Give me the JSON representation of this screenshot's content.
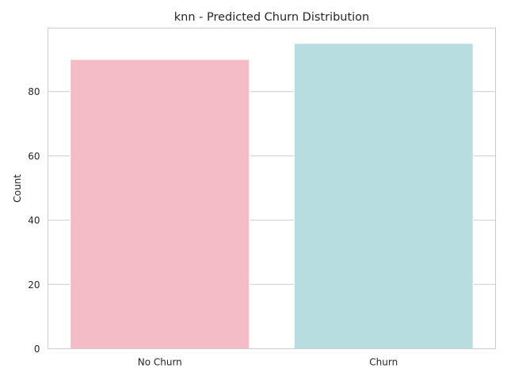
{
  "chart_data": {
    "type": "bar",
    "title": "knn - Predicted Churn Distribution",
    "xlabel": "",
    "ylabel": "Count",
    "categories": [
      "No Churn",
      "Churn"
    ],
    "values": [
      90,
      95
    ],
    "colors": [
      "#f4bcc7",
      "#b8dde1"
    ],
    "ylim": [
      0,
      99.75
    ],
    "yticks": [
      0,
      20,
      40,
      60,
      80
    ],
    "grid": true,
    "legend": "none"
  }
}
